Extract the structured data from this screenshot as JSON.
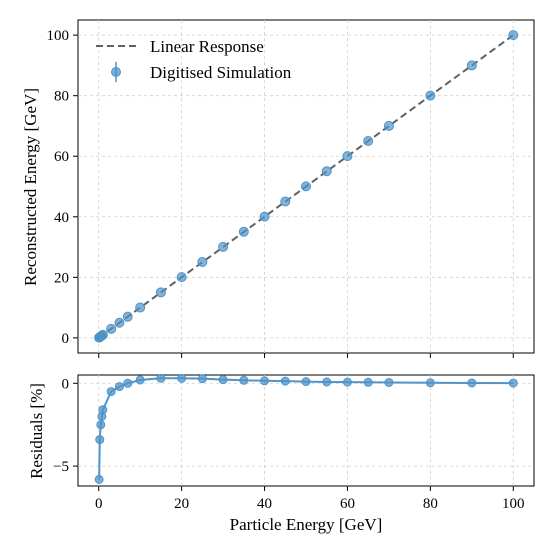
{
  "chart_data": [
    {
      "type": "scatter",
      "xlabel": "",
      "ylabel": "Reconstructed Energy [GeV]",
      "xlim": [
        -5,
        105
      ],
      "ylim": [
        -5,
        105
      ],
      "xticks": [
        0,
        20,
        40,
        60,
        80,
        100
      ],
      "yticks": [
        0,
        20,
        40,
        60,
        80,
        100
      ],
      "grid": true,
      "legend": {
        "placement": "top-left",
        "entries": [
          "Linear Response",
          "Digitised Simulation"
        ]
      },
      "series": [
        {
          "name": "Linear Response",
          "kind": "line",
          "style": "dashed",
          "color": "#616161",
          "x": [
            0,
            100
          ],
          "y": [
            0,
            100
          ]
        },
        {
          "name": "Digitised Simulation",
          "kind": "errorbar",
          "color": "#4f93c8",
          "x": [
            0.1,
            0.25,
            0.5,
            0.75,
            1,
            3,
            5,
            7,
            10,
            15,
            20,
            25,
            30,
            35,
            40,
            45,
            50,
            55,
            60,
            65,
            70,
            80,
            90,
            100
          ],
          "y": [
            0.094,
            0.242,
            0.488,
            0.735,
            0.984,
            2.985,
            4.99,
            7.0,
            10.02,
            15.045,
            20.06,
            25.07,
            30.06,
            35.05,
            40.05,
            45.05,
            50.04,
            55.04,
            60.03,
            65.03,
            70.02,
            80.02,
            90.0,
            100.0
          ]
        }
      ]
    },
    {
      "type": "line",
      "xlabel": "Particle Energy [GeV]",
      "ylabel": "Residuals [%]",
      "xlim": [
        -5,
        105
      ],
      "ylim": [
        -6.2,
        0.5
      ],
      "xticks": [
        0,
        20,
        40,
        60,
        80,
        100
      ],
      "yticks": [
        -5,
        0
      ],
      "grid": true,
      "series": [
        {
          "name": "Digitised Simulation",
          "color": "#4f93c8",
          "x": [
            0.1,
            0.25,
            0.5,
            0.75,
            1,
            3,
            5,
            7,
            10,
            15,
            20,
            25,
            30,
            35,
            40,
            45,
            50,
            55,
            60,
            65,
            70,
            80,
            90,
            100
          ],
          "y": [
            -5.8,
            -3.4,
            -2.5,
            -2.0,
            -1.6,
            -0.5,
            -0.2,
            0.0,
            0.2,
            0.3,
            0.3,
            0.28,
            0.22,
            0.18,
            0.15,
            0.13,
            0.1,
            0.08,
            0.07,
            0.06,
            0.05,
            0.03,
            0.02,
            0.01
          ]
        }
      ]
    }
  ]
}
